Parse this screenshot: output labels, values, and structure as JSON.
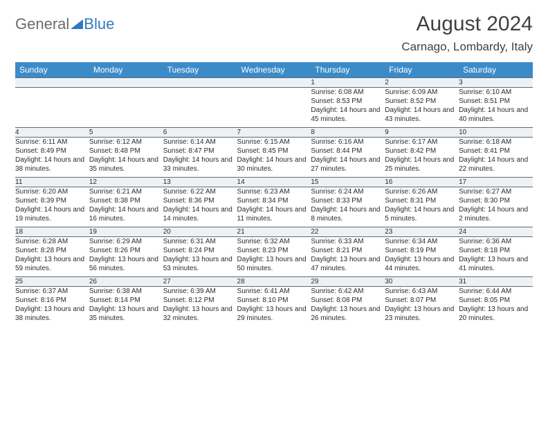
{
  "logo": {
    "part1": "General",
    "part2": "Blue"
  },
  "header": {
    "month_title": "August 2024",
    "location": "Carnago, Lombardy, Italy"
  },
  "styling": {
    "header_bg": "#3b8bc9",
    "header_text": "#ffffff",
    "daynum_bg": "#eef1f3",
    "border_color": "#5a6a7a",
    "body_text": "#2a2a2a",
    "page_bg": "#ffffff",
    "font_family": "Arial",
    "title_fontsize_pt": 22,
    "location_fontsize_pt": 13,
    "dayhead_fontsize_pt": 9,
    "cell_fontsize_pt": 7.5
  },
  "calendar": {
    "type": "table",
    "day_headers": [
      "Sunday",
      "Monday",
      "Tuesday",
      "Wednesday",
      "Thursday",
      "Friday",
      "Saturday"
    ],
    "weeks": [
      [
        null,
        null,
        null,
        null,
        {
          "n": "1",
          "sr": "6:08 AM",
          "ss": "8:53 PM",
          "dl": "14 hours and 45 minutes."
        },
        {
          "n": "2",
          "sr": "6:09 AM",
          "ss": "8:52 PM",
          "dl": "14 hours and 43 minutes."
        },
        {
          "n": "3",
          "sr": "6:10 AM",
          "ss": "8:51 PM",
          "dl": "14 hours and 40 minutes."
        }
      ],
      [
        {
          "n": "4",
          "sr": "6:11 AM",
          "ss": "8:49 PM",
          "dl": "14 hours and 38 minutes."
        },
        {
          "n": "5",
          "sr": "6:12 AM",
          "ss": "8:48 PM",
          "dl": "14 hours and 35 minutes."
        },
        {
          "n": "6",
          "sr": "6:14 AM",
          "ss": "8:47 PM",
          "dl": "14 hours and 33 minutes."
        },
        {
          "n": "7",
          "sr": "6:15 AM",
          "ss": "8:45 PM",
          "dl": "14 hours and 30 minutes."
        },
        {
          "n": "8",
          "sr": "6:16 AM",
          "ss": "8:44 PM",
          "dl": "14 hours and 27 minutes."
        },
        {
          "n": "9",
          "sr": "6:17 AM",
          "ss": "8:42 PM",
          "dl": "14 hours and 25 minutes."
        },
        {
          "n": "10",
          "sr": "6:18 AM",
          "ss": "8:41 PM",
          "dl": "14 hours and 22 minutes."
        }
      ],
      [
        {
          "n": "11",
          "sr": "6:20 AM",
          "ss": "8:39 PM",
          "dl": "14 hours and 19 minutes."
        },
        {
          "n": "12",
          "sr": "6:21 AM",
          "ss": "8:38 PM",
          "dl": "14 hours and 16 minutes."
        },
        {
          "n": "13",
          "sr": "6:22 AM",
          "ss": "8:36 PM",
          "dl": "14 hours and 14 minutes."
        },
        {
          "n": "14",
          "sr": "6:23 AM",
          "ss": "8:34 PM",
          "dl": "14 hours and 11 minutes."
        },
        {
          "n": "15",
          "sr": "6:24 AM",
          "ss": "8:33 PM",
          "dl": "14 hours and 8 minutes."
        },
        {
          "n": "16",
          "sr": "6:26 AM",
          "ss": "8:31 PM",
          "dl": "14 hours and 5 minutes."
        },
        {
          "n": "17",
          "sr": "6:27 AM",
          "ss": "8:30 PM",
          "dl": "14 hours and 2 minutes."
        }
      ],
      [
        {
          "n": "18",
          "sr": "6:28 AM",
          "ss": "8:28 PM",
          "dl": "13 hours and 59 minutes."
        },
        {
          "n": "19",
          "sr": "6:29 AM",
          "ss": "8:26 PM",
          "dl": "13 hours and 56 minutes."
        },
        {
          "n": "20",
          "sr": "6:31 AM",
          "ss": "8:24 PM",
          "dl": "13 hours and 53 minutes."
        },
        {
          "n": "21",
          "sr": "6:32 AM",
          "ss": "8:23 PM",
          "dl": "13 hours and 50 minutes."
        },
        {
          "n": "22",
          "sr": "6:33 AM",
          "ss": "8:21 PM",
          "dl": "13 hours and 47 minutes."
        },
        {
          "n": "23",
          "sr": "6:34 AM",
          "ss": "8:19 PM",
          "dl": "13 hours and 44 minutes."
        },
        {
          "n": "24",
          "sr": "6:36 AM",
          "ss": "8:18 PM",
          "dl": "13 hours and 41 minutes."
        }
      ],
      [
        {
          "n": "25",
          "sr": "6:37 AM",
          "ss": "8:16 PM",
          "dl": "13 hours and 38 minutes."
        },
        {
          "n": "26",
          "sr": "6:38 AM",
          "ss": "8:14 PM",
          "dl": "13 hours and 35 minutes."
        },
        {
          "n": "27",
          "sr": "6:39 AM",
          "ss": "8:12 PM",
          "dl": "13 hours and 32 minutes."
        },
        {
          "n": "28",
          "sr": "6:41 AM",
          "ss": "8:10 PM",
          "dl": "13 hours and 29 minutes."
        },
        {
          "n": "29",
          "sr": "6:42 AM",
          "ss": "8:08 PM",
          "dl": "13 hours and 26 minutes."
        },
        {
          "n": "30",
          "sr": "6:43 AM",
          "ss": "8:07 PM",
          "dl": "13 hours and 23 minutes."
        },
        {
          "n": "31",
          "sr": "6:44 AM",
          "ss": "8:05 PM",
          "dl": "13 hours and 20 minutes."
        }
      ]
    ],
    "labels": {
      "sunrise": "Sunrise:",
      "sunset": "Sunset:",
      "daylight": "Daylight:"
    }
  }
}
